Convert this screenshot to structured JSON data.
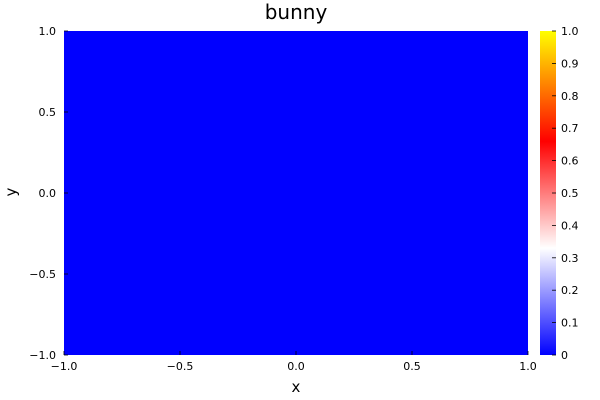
{
  "chart_data": {
    "type": "heatmap",
    "title": "bunny",
    "xlabel": "x",
    "ylabel": "y",
    "xlim": [
      -1.0,
      1.0
    ],
    "ylim": [
      -1.0,
      1.0
    ],
    "x_ticks": [
      -1.0,
      -0.5,
      0.0,
      0.5,
      1.0
    ],
    "x_tick_labels": [
      "−1.0",
      "−0.5",
      "0.0",
      "0.5",
      "1.0"
    ],
    "y_ticks": [
      -1.0,
      -0.5,
      0.0,
      0.5,
      1.0
    ],
    "y_tick_labels": [
      "−1.0",
      "−0.5",
      "0.0",
      "0.5",
      "1.0"
    ],
    "z_value": 0.0,
    "colorbar": {
      "range": [
        0.0,
        1.0
      ],
      "ticks": [
        0.0,
        0.1,
        0.2,
        0.3,
        0.4,
        0.5,
        0.6,
        0.7,
        0.8,
        0.9,
        1.0
      ],
      "tick_labels": [
        "0",
        "0.1",
        "0.2",
        "0.3",
        "0.4",
        "0.5",
        "0.6",
        "0.7",
        "0.8",
        "0.9",
        "1.0"
      ],
      "colormap": [
        {
          "value": 0.0,
          "color": "#0000ff"
        },
        {
          "value": 0.33,
          "color": "#ffffff"
        },
        {
          "value": 0.66,
          "color": "#ff0000"
        },
        {
          "value": 1.0,
          "color": "#ffff00"
        }
      ]
    },
    "grid": false,
    "legend": "none"
  }
}
